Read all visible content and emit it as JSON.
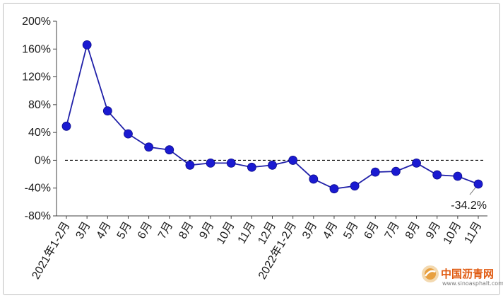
{
  "chart_data": {
    "type": "line",
    "title": "",
    "xlabel": "",
    "ylabel": "",
    "ylim": [
      -80,
      200
    ],
    "yticks": [
      "200%",
      "160%",
      "120%",
      "80%",
      "40%",
      "0%",
      "-40%",
      "-80%"
    ],
    "ytick_values": [
      200,
      160,
      120,
      80,
      40,
      0,
      -40,
      -80
    ],
    "categories": [
      "2021年1-2月",
      "3月",
      "4月",
      "5月",
      "6月",
      "7月",
      "8月",
      "9月",
      "10月",
      "11月",
      "12月",
      "2022年1-2月",
      "3月",
      "4月",
      "5月",
      "6月",
      "7月",
      "8月",
      "9月",
      "10月",
      "11月"
    ],
    "series": [
      {
        "values": [
          49,
          166,
          71,
          38,
          19,
          15,
          -7,
          -4,
          -4,
          -10,
          -7,
          0,
          -27,
          -41,
          -37,
          -17,
          -16,
          -4,
          -21,
          -23,
          -34.2
        ]
      }
    ],
    "reference_line": 0,
    "annotation": {
      "text": "-34.2%",
      "index": 20
    },
    "grid": false,
    "legend": "none",
    "colors": {
      "line": "#1f1fa8",
      "marker": "#1a1ad1",
      "axis": "#404040",
      "refline": "#000000"
    }
  },
  "watermark": {
    "name": "中国沥青网",
    "url": "www.sinoasphalt.com"
  }
}
